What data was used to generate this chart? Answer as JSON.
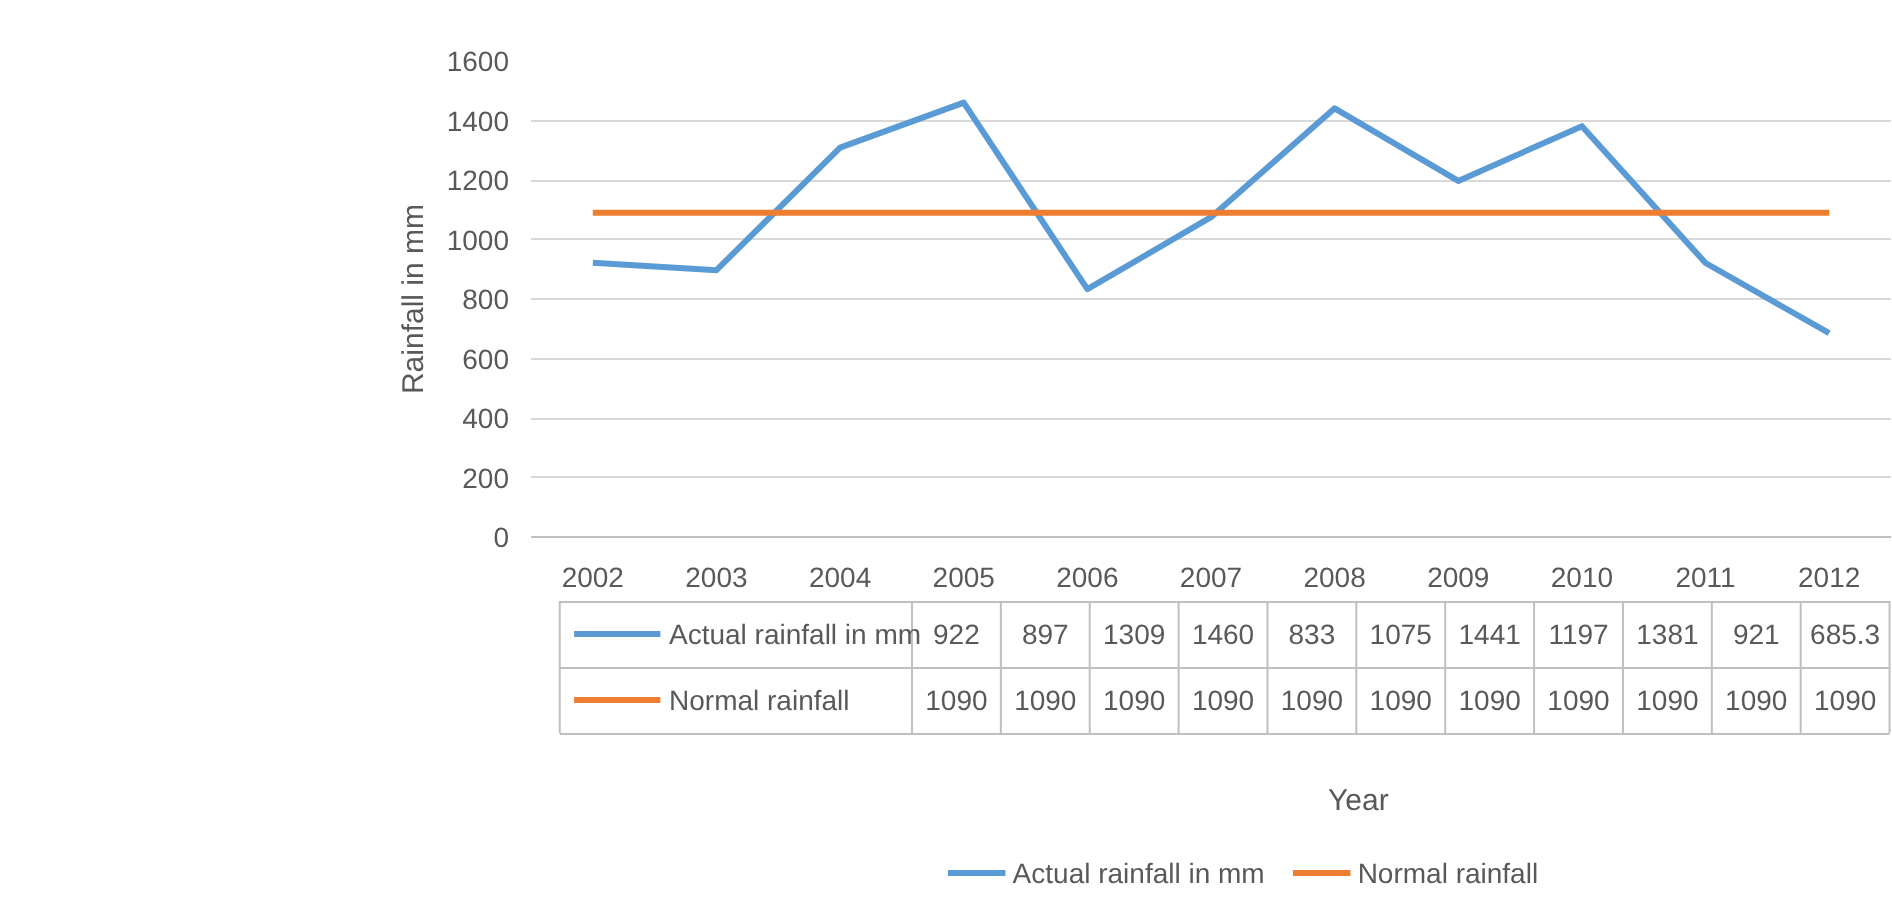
{
  "chart_data": {
    "type": "line",
    "ylabel": "Rainfall in mm",
    "categories": [
      "2002",
      "2003",
      "2004",
      "2005",
      "2006",
      "2007",
      "2008",
      "2009",
      "2010",
      "2011",
      "2012"
    ],
    "series": [
      {
        "name": "Actual rainfall in mm",
        "color": "#5b9bd5",
        "values": [
          922,
          897,
          1309,
          1460,
          833,
          1075,
          1441,
          1197,
          1381,
          921,
          685.3
        ]
      },
      {
        "name": "Normal rainfall",
        "color": "#ed7d31",
        "values": [
          1090,
          1090,
          1090,
          1090,
          1090,
          1090,
          1090,
          1090,
          1090,
          1090,
          1090
        ]
      }
    ],
    "ylim": [
      0,
      1600
    ],
    "yticks": [
      0,
      200,
      400,
      600,
      800,
      1000,
      1200,
      1400,
      1600
    ],
    "annotations": [
      "922",
      "897",
      "1309",
      "1460",
      "833",
      "1075",
      "1441",
      "1197",
      "1381",
      "921",
      "685.3",
      "1090",
      "1090",
      "1090",
      "1090",
      "1090",
      "1090",
      "1090",
      "1090",
      "1090",
      "1090",
      "1090",
      "Year"
    ],
    "grid": "y",
    "legend": "bottom"
  }
}
